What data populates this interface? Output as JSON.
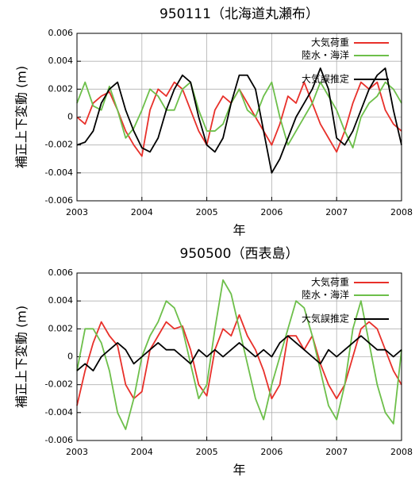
{
  "chart_data": [
    {
      "type": "line",
      "title": "950111（北海道丸瀬布）",
      "x_label": "年",
      "y_label": "補正上下変動 (m)",
      "x": [
        2003,
        2003.125,
        2003.25,
        2003.375,
        2003.5,
        2003.625,
        2003.75,
        2003.875,
        2004,
        2004.125,
        2004.25,
        2004.375,
        2004.5,
        2004.625,
        2004.75,
        2004.875,
        2005,
        2005.125,
        2005.25,
        2005.375,
        2005.5,
        2005.625,
        2005.75,
        2005.875,
        2006,
        2006.125,
        2006.25,
        2006.375,
        2006.5,
        2006.625,
        2006.75,
        2006.875,
        2007,
        2007.125,
        2007.25,
        2007.375,
        2007.5,
        2007.625,
        2007.75,
        2007.875,
        2008
      ],
      "xlim": [
        2003,
        2008
      ],
      "xticks": [
        2003,
        2004,
        2005,
        2006,
        2007,
        2008
      ],
      "ylim": [
        -0.006,
        0.006
      ],
      "yticks": [
        -0.006,
        -0.004,
        -0.002,
        0,
        0.002,
        0.004,
        0.006
      ],
      "grid": true,
      "legend": "upper right",
      "series": [
        {
          "name": "大気荷重",
          "color": "#e8302a",
          "values": [
            0,
            -0.0005,
            0.001,
            0.0015,
            0.0018,
            0.0005,
            -0.001,
            -0.002,
            -0.0028,
            0.0005,
            0.002,
            0.0015,
            0.0025,
            0.002,
            0.0005,
            -0.001,
            -0.002,
            0.0005,
            0.0015,
            0.001,
            0.002,
            0.001,
            0,
            -0.001,
            -0.002,
            -0.0005,
            0.0015,
            0.001,
            0.0025,
            0.001,
            -0.0005,
            -0.0015,
            -0.0025,
            -0.001,
            0.001,
            0.0025,
            0.002,
            0.0025,
            0.0005,
            -0.0005,
            -0.001
          ]
        },
        {
          "name": "陸水・海洋",
          "color": "#6dbf4a",
          "values": [
            0.001,
            0.0025,
            0.0008,
            0.0005,
            0.0022,
            0.0005,
            -0.0015,
            -0.0008,
            0.0005,
            0.002,
            0.0015,
            0.0005,
            0.0005,
            0.002,
            0.0025,
            0.0005,
            -0.001,
            -0.001,
            -0.0005,
            0.001,
            0.002,
            0.0005,
            0,
            0.0015,
            0.0025,
            0,
            -0.002,
            -0.001,
            0,
            0.001,
            0.0025,
            0.0015,
            0.0005,
            -0.001,
            -0.0022,
            0,
            0.001,
            0.0015,
            0.0025,
            0.002,
            0.001
          ]
        },
        {
          "name": "大気誤推定",
          "color": "#000000",
          "values": [
            -0.002,
            -0.0018,
            -0.001,
            0.001,
            0.002,
            0.0025,
            0.0005,
            -0.001,
            -0.0022,
            -0.0025,
            -0.0015,
            0.0005,
            0.002,
            0.003,
            0.0025,
            0,
            -0.002,
            -0.0025,
            -0.0015,
            0.001,
            0.003,
            0.003,
            0.002,
            -0.001,
            -0.004,
            -0.003,
            -0.0015,
            0,
            0.001,
            0.002,
            0.0035,
            0.002,
            -0.0015,
            -0.002,
            -0.001,
            0.0005,
            0.002,
            0.003,
            0.0035,
            0.0005,
            -0.002
          ]
        }
      ]
    },
    {
      "type": "line",
      "title": "950500（西表島）",
      "x_label": "年",
      "y_label": "補正上下変動 (m)",
      "x": [
        2003,
        2003.125,
        2003.25,
        2003.375,
        2003.5,
        2003.625,
        2003.75,
        2003.875,
        2004,
        2004.125,
        2004.25,
        2004.375,
        2004.5,
        2004.625,
        2004.75,
        2004.875,
        2005,
        2005.125,
        2005.25,
        2005.375,
        2005.5,
        2005.625,
        2005.75,
        2005.875,
        2006,
        2006.125,
        2006.25,
        2006.375,
        2006.5,
        2006.625,
        2006.75,
        2006.875,
        2007,
        2007.125,
        2007.25,
        2007.375,
        2007.5,
        2007.625,
        2007.75,
        2007.875,
        2008
      ],
      "xlim": [
        2003,
        2008
      ],
      "xticks": [
        2003,
        2004,
        2005,
        2006,
        2007,
        2008
      ],
      "ylim": [
        -0.006,
        0.006
      ],
      "yticks": [
        -0.006,
        -0.004,
        -0.002,
        0,
        0.002,
        0.004,
        0.006
      ],
      "grid": true,
      "legend": "upper right",
      "series": [
        {
          "name": "大気荷重",
          "color": "#e8302a",
          "values": [
            -0.0035,
            -0.001,
            0.001,
            0.0025,
            0.0015,
            0.0008,
            -0.002,
            -0.003,
            -0.0025,
            0.0005,
            0.0015,
            0.0025,
            0.002,
            0.0022,
            0.0005,
            -0.002,
            -0.0028,
            0.0005,
            0.002,
            0.0015,
            0.003,
            0.0015,
            0.0005,
            -0.001,
            -0.003,
            -0.002,
            0.0015,
            0.0015,
            0.0005,
            0.0015,
            -0.0005,
            -0.002,
            -0.003,
            -0.002,
            0,
            0.002,
            0.0025,
            0.002,
            0.0005,
            -0.001,
            -0.002
          ]
        },
        {
          "name": "陸水・海洋",
          "color": "#6dbf4a",
          "values": [
            -0.001,
            0.002,
            0.002,
            0.001,
            -0.001,
            -0.004,
            -0.0052,
            -0.003,
            0,
            0.0015,
            0.0025,
            0.004,
            0.0035,
            0.002,
            -0.0005,
            -0.003,
            -0.002,
            0.002,
            0.0055,
            0.0045,
            0.002,
            -0.0005,
            -0.003,
            -0.0045,
            -0.002,
            0,
            0.002,
            0.004,
            0.0035,
            0.0015,
            -0.001,
            -0.0035,
            -0.0045,
            -0.002,
            0.002,
            0.004,
            0.001,
            -0.002,
            -0.004,
            -0.0048,
            0.0005
          ]
        },
        {
          "name": "大気誤推定",
          "color": "#000000",
          "values": [
            -0.001,
            -0.0005,
            -0.001,
            0,
            0.0005,
            0.001,
            0.0005,
            -0.0005,
            0,
            0.0005,
            0.001,
            0.0005,
            0.0005,
            0,
            -0.0005,
            0.0005,
            0,
            0.0005,
            0,
            0.0005,
            0.001,
            0.0005,
            0,
            0.0005,
            0,
            0.001,
            0.0015,
            0.001,
            0.0005,
            0,
            -0.0005,
            0.0005,
            0,
            0.0005,
            0.001,
            0.0015,
            0.001,
            0.0005,
            0.0005,
            0,
            0.0005
          ]
        }
      ]
    }
  ]
}
